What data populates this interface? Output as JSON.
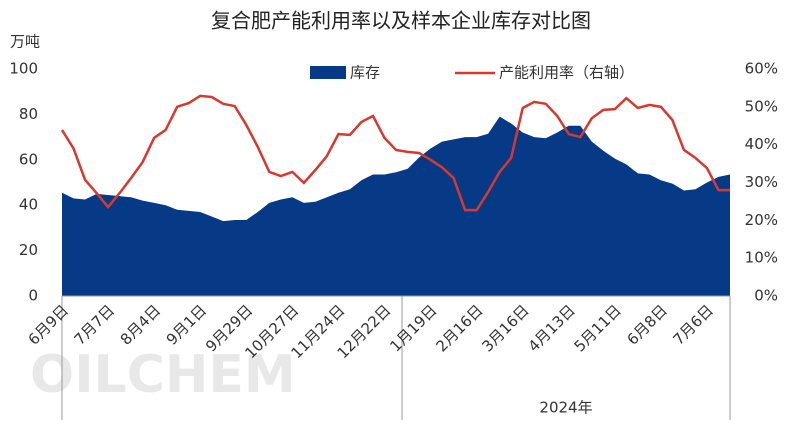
{
  "chart_data": {
    "type": "area_line",
    "title": "复合肥产能利用率以及样本企业库存对比图",
    "y_label": "万吨",
    "x_annotation": "2024年",
    "watermark": "OILCHEM",
    "categories": [
      "6月9日",
      null,
      null,
      null,
      "7月7日",
      null,
      null,
      null,
      "8月4日",
      null,
      null,
      null,
      "9月1日",
      null,
      null,
      null,
      "9月29日",
      null,
      null,
      null,
      "10月27日",
      null,
      null,
      null,
      "11月24日",
      null,
      null,
      null,
      "12月22日",
      null,
      null,
      null,
      "1月19日",
      null,
      null,
      null,
      "2月16日",
      null,
      null,
      null,
      "3月16日",
      null,
      null,
      null,
      "4月13日",
      null,
      null,
      null,
      "5月11日",
      null,
      null,
      null,
      "6月8日",
      null,
      null,
      null,
      "7月6日",
      null,
      null
    ],
    "series": [
      {
        "name": "库存",
        "color": "#063a87",
        "values": [
          45.5,
          43,
          42.5,
          45,
          44.5,
          44,
          43.5,
          42,
          41,
          40,
          38,
          37.5,
          37,
          35,
          33,
          33.5,
          33.5,
          37,
          41,
          42.5,
          43.5,
          41,
          41.5,
          43.5,
          45.5,
          47,
          51,
          53.5,
          53.5,
          54.5,
          56,
          61,
          65,
          68,
          69,
          70,
          70,
          71.5,
          79,
          76,
          72,
          70,
          69.5,
          72,
          75,
          75,
          68,
          64,
          60.5,
          58,
          54,
          53.5,
          51,
          49.5,
          46.5,
          47,
          50,
          52.5,
          53.5
        ]
      },
      {
        "name": "产能利用率（右轴）",
        "color": "#d8382e",
        "axis": "y2",
        "values": [
          43.9,
          39,
          30.7,
          27.2,
          23.5,
          27.2,
          31.2,
          35.4,
          41.8,
          43.9,
          50,
          51,
          52.9,
          52.6,
          50.8,
          50.2,
          45.2,
          39.4,
          32.8,
          31.7,
          32.8,
          29.9,
          33.3,
          37,
          42.8,
          42.6,
          46,
          47.6,
          41.8,
          38.6,
          38.1,
          37.8,
          36,
          34,
          31.2,
          22.7,
          22.7,
          27.5,
          32.8,
          36.5,
          49.7,
          51.3,
          50.8,
          47.6,
          42.8,
          42,
          47,
          49.2,
          49.4,
          52.3,
          49.7,
          50.5,
          50,
          46.5,
          38.6,
          36.5,
          33.8,
          28,
          28
        ]
      }
    ],
    "ylim": [
      0,
      100
    ],
    "yticks": [
      0,
      20,
      40,
      60,
      80,
      100
    ],
    "y2lim": [
      0,
      60
    ],
    "y2ticks": [
      {
        "value": 0,
        "label": "0%"
      },
      {
        "value": 10,
        "label": "10%"
      },
      {
        "value": 20,
        "label": "20%"
      },
      {
        "value": 30,
        "label": "30%"
      },
      {
        "value": 40,
        "label": "40%"
      },
      {
        "value": 50,
        "label": "50%"
      },
      {
        "value": 60,
        "label": "60%"
      }
    ]
  }
}
